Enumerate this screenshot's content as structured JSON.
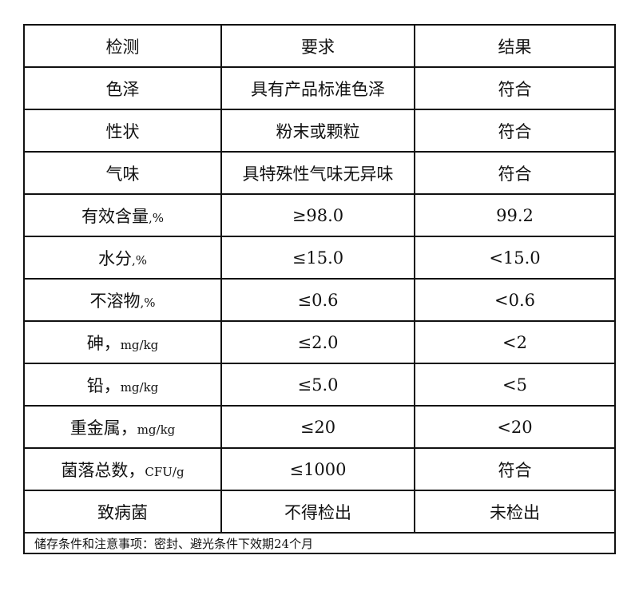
{
  "header": [
    "检测",
    "要求",
    "结果"
  ],
  "rows": [
    {
      "item": "色泽",
      "unit": "",
      "requirement": "具有产品标准色泽",
      "result": "符合"
    },
    {
      "item": "性状",
      "unit": "",
      "requirement": "粉末或颗粒",
      "result": "符合"
    },
    {
      "item": "气味",
      "unit": "",
      "requirement": "具特殊性气味无异味",
      "result": "符合"
    },
    {
      "item": "有效含量",
      "unit": ",%",
      "requirement": "≥98.0",
      "result": "99.2"
    },
    {
      "item": "水分",
      "unit": ",%",
      "requirement": "≤15.0",
      "result": "<15.0"
    },
    {
      "item": "不溶物",
      "unit": ",%",
      "requirement": "≤0.6",
      "result": "<0.6"
    },
    {
      "item": "砷，",
      "unit": "mg/kg",
      "requirement": "≤2.0",
      "result": "<2"
    },
    {
      "item": "铅，",
      "unit": "mg/kg",
      "requirement": "≤5.0",
      "result": "<5"
    },
    {
      "item": "重金属，",
      "unit": "mg/kg",
      "requirement": "≤20",
      "result": "<20"
    },
    {
      "item": "菌落总数，",
      "unit": "CFU/g",
      "requirement": "≤1000",
      "result": "符合"
    },
    {
      "item": "致病菌",
      "unit": "",
      "requirement": "不得检出",
      "result": "未检出"
    }
  ],
  "footer": "储存条件和注意事项：密封、避光条件下效期24个月"
}
